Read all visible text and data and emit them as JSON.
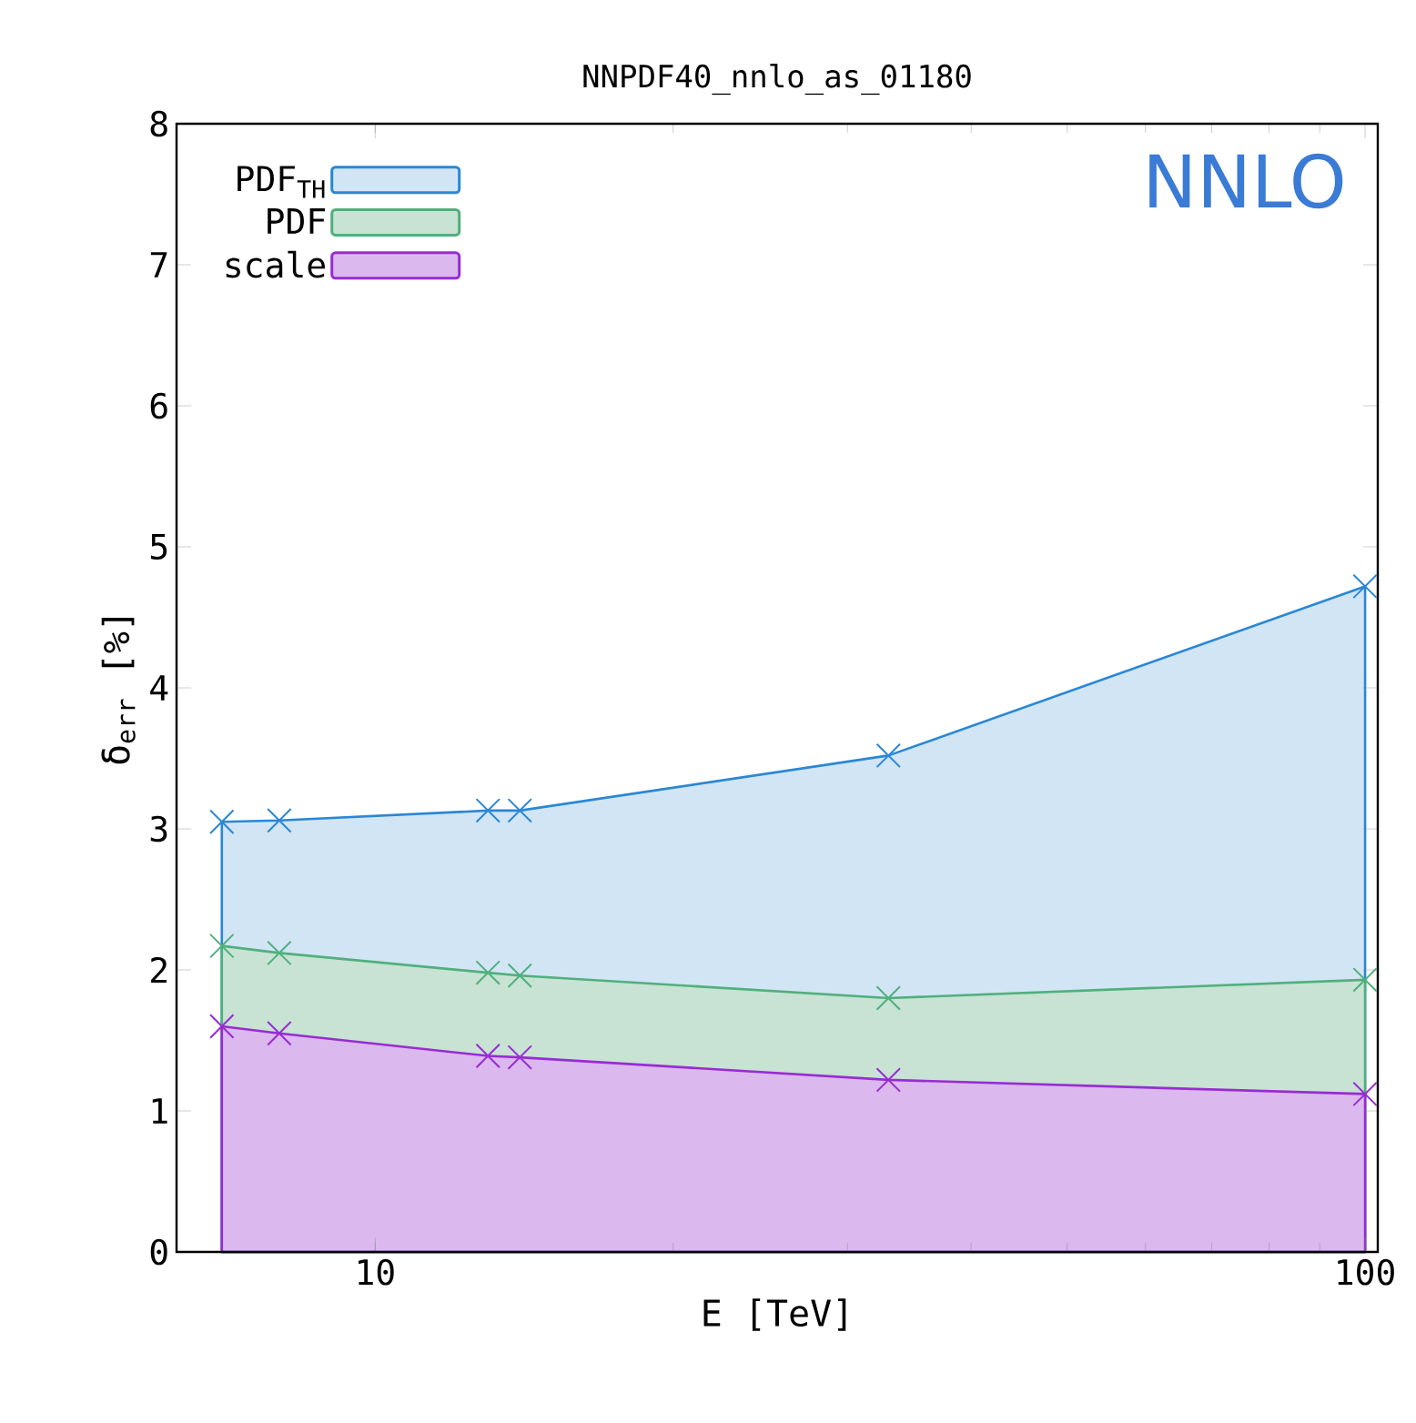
{
  "chart_data": {
    "type": "area",
    "title": "NNPDF40_nnlo_as_01180",
    "xlabel": "E [TeV]",
    "ylabel": "δ$_{err}$ [%]",
    "x": [
      7,
      8,
      13,
      14,
      33,
      100
    ],
    "series": [
      {
        "name": "PDF$_{TH}$",
        "color": "#d2e5f5",
        "marker": "cross",
        "values": [
          3.05,
          3.06,
          3.13,
          3.13,
          3.52,
          4.72
        ]
      },
      {
        "name": "PDF",
        "color": "#c8e2d4",
        "marker": "cross",
        "values": [
          2.17,
          2.12,
          1.98,
          1.96,
          1.8,
          1.93
        ]
      },
      {
        "name": "scale",
        "color": "#dbb8ee",
        "marker": "cross",
        "values": [
          1.6,
          1.55,
          1.39,
          1.38,
          1.22,
          1.12
        ]
      }
    ],
    "log": "x",
    "xlim": [
      6.3,
      103
    ],
    "xticks": [
      10,
      100
    ],
    "ylim": [
      0,
      8
    ],
    "yticks": [
      0,
      1,
      2,
      3,
      4,
      5,
      6,
      7,
      8
    ],
    "legend": "top left",
    "annotations": [
      "NNLO"
    ]
  }
}
